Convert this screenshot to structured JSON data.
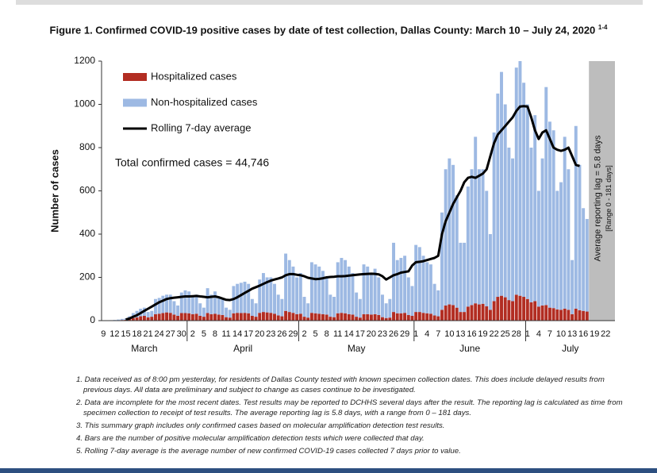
{
  "chart_data": {
    "type": "bar",
    "title": "Figure 1. Confirmed COVID-19 positive cases by date of test collection, Dallas County: March 10 – July 24, 2020",
    "title_note": "1-4",
    "y_label": "Number of cases",
    "annotation": "Total confirmed cases = 44,746",
    "lag_band": {
      "label": "Average reporting lag = 5.8 days",
      "sublabel": "[Range 0 - 181 days]",
      "color": "#bdbdbd"
    },
    "months": [
      {
        "name": "March",
        "days": [
          "9",
          null,
          null,
          "12",
          null,
          null,
          "15",
          null,
          null,
          "18",
          null,
          null,
          "21",
          null,
          null,
          "24",
          null,
          null,
          "27",
          null,
          null,
          "30",
          null
        ]
      },
      {
        "name": "April",
        "days": [
          null,
          "2",
          null,
          null,
          "5",
          null,
          null,
          "8",
          null,
          null,
          "11",
          null,
          null,
          "14",
          null,
          null,
          "17",
          null,
          null,
          "20",
          null,
          null,
          "23",
          null,
          null,
          "26",
          null,
          null,
          "29",
          null
        ]
      },
      {
        "name": "May",
        "days": [
          null,
          "2",
          null,
          null,
          "5",
          null,
          null,
          "8",
          null,
          null,
          "11",
          null,
          null,
          "14",
          null,
          null,
          "17",
          null,
          null,
          "20",
          null,
          null,
          "23",
          null,
          null,
          "26",
          null,
          null,
          "29",
          null,
          null
        ]
      },
      {
        "name": "June",
        "days": [
          "1",
          null,
          null,
          "4",
          null,
          null,
          "7",
          null,
          null,
          "10",
          null,
          null,
          "13",
          null,
          null,
          "16",
          null,
          null,
          "19",
          null,
          null,
          "22",
          null,
          null,
          "25",
          null,
          null,
          "28",
          null,
          null
        ]
      },
      {
        "name": "July",
        "days": [
          "1",
          null,
          null,
          "4",
          null,
          null,
          "7",
          null,
          null,
          "10",
          null,
          null,
          "13",
          null,
          null,
          "16",
          null,
          null,
          "19",
          null,
          null,
          "22",
          null,
          null
        ]
      }
    ],
    "series": [
      {
        "name": "Hospitalized cases",
        "type": "bar",
        "color": "#b22d22",
        "values": [
          0,
          0,
          0,
          1,
          2,
          3,
          4,
          8,
          12,
          15,
          20,
          22,
          15,
          18,
          30,
          32,
          35,
          38,
          36,
          28,
          22,
          35,
          35,
          34,
          30,
          32,
          22,
          18,
          35,
          30,
          32,
          28,
          26,
          16,
          14,
          34,
          36,
          35,
          36,
          34,
          22,
          18,
          36,
          40,
          38,
          36,
          32,
          24,
          20,
          45,
          40,
          36,
          30,
          32,
          18,
          14,
          36,
          34,
          32,
          30,
          28,
          18,
          16,
          34,
          36,
          34,
          30,
          28,
          18,
          14,
          30,
          30,
          28,
          30,
          26,
          16,
          12,
          14,
          40,
          34,
          34,
          36,
          26,
          22,
          40,
          40,
          36,
          34,
          32,
          24,
          20,
          50,
          70,
          75,
          72,
          60,
          40,
          40,
          65,
          72,
          80,
          75,
          78,
          66,
          50,
          90,
          110,
          115,
          108,
          95,
          90,
          120,
          115,
          110,
          100,
          85,
          90,
          65,
          70,
          72,
          60,
          58,
          52,
          50,
          55,
          50,
          30,
          55,
          48,
          45,
          42,
          null,
          null,
          null,
          null,
          null,
          null,
          null
        ]
      },
      {
        "name": "Non-hospitalized cases",
        "type": "bar",
        "color": "#9db9e3",
        "values": [
          0,
          1,
          2,
          2,
          3,
          5,
          6,
          12,
          23,
          30,
          35,
          38,
          25,
          27,
          70,
          73,
          80,
          82,
          84,
          62,
          48,
          95,
          105,
          101,
          80,
          88,
          58,
          42,
          115,
          90,
          103,
          82,
          74,
          44,
          36,
          126,
          134,
          140,
          144,
          136,
          78,
          62,
          154,
          180,
          162,
          164,
          138,
          96,
          80,
          265,
          240,
          214,
          170,
          188,
          92,
          66,
          234,
          226,
          218,
          200,
          172,
          102,
          94,
          236,
          254,
          246,
          220,
          192,
          112,
          86,
          230,
          220,
          192,
          210,
          174,
          104,
          68,
          86,
          320,
          246,
          256,
          264,
          174,
          138,
          310,
          300,
          264,
          236,
          228,
          146,
          120,
          450,
          630,
          675,
          648,
          520,
          320,
          320,
          555,
          628,
          770,
          625,
          622,
          534,
          350,
          780,
          940,
          1035,
          892,
          705,
          660,
          1050,
          1085,
          990,
          900,
          715,
          860,
          535,
          680,
          1008,
          860,
          822,
          548,
          590,
          795,
          650,
          250,
          845,
          672,
          475,
          428,
          null,
          null,
          null,
          null,
          null,
          null,
          null
        ]
      },
      {
        "name": "Rolling 7-day average",
        "type": "line",
        "color": "#000000",
        "values": [
          null,
          null,
          null,
          null,
          null,
          null,
          5,
          10,
          18,
          25,
          35,
          45,
          55,
          65,
          75,
          85,
          92,
          100,
          104,
          106,
          108,
          110,
          112,
          112,
          113,
          114,
          112,
          110,
          108,
          110,
          112,
          108,
          102,
          96,
          95,
          100,
          108,
          118,
          128,
          138,
          148,
          155,
          162,
          170,
          178,
          185,
          190,
          195,
          200,
          210,
          215,
          215,
          212,
          210,
          205,
          198,
          195,
          192,
          193,
          196,
          200,
          202,
          203,
          205,
          205,
          206,
          208,
          210,
          212,
          214,
          215,
          216,
          217,
          216,
          214,
          205,
          190,
          200,
          210,
          215,
          222,
          225,
          228,
          255,
          270,
          272,
          275,
          280,
          285,
          290,
          300,
          400,
          460,
          500,
          540,
          570,
          600,
          640,
          660,
          665,
          660,
          670,
          680,
          700,
          760,
          820,
          860,
          880,
          900,
          920,
          940,
          970,
          990,
          992,
          990,
          940,
          880,
          840,
          870,
          880,
          840,
          800,
          790,
          785,
          790,
          800,
          760,
          720,
          715,
          null,
          null,
          null,
          null,
          null,
          null,
          null,
          null,
          null
        ]
      }
    ],
    "ylim": [
      0,
      1200
    ],
    "yticks": [
      0,
      200,
      400,
      600,
      800,
      1000,
      1200
    ],
    "grid": false,
    "legend": "upper left"
  },
  "footnotes": [
    "1. Data received as of 8:00 pm yesterday, for residents of Dallas County tested with known specimen collection dates.  This does include delayed results from previous days. All data are preliminary and subject to change as cases continue to be investigated.",
    "2. Data are incomplete for the most recent dates. Test results may be reported to DCHHS several days after the result. The reporting lag is calculated as time from specimen collection to receipt of test results. The average reporting lag is 5.8 days, with a range from 0 – 181 days.",
    "3. This summary graph includes only confirmed cases based on molecular amplification detection test results.",
    "4. Bars are the number of positive molecular amplification detection tests which were collected that day.",
    "5. Rolling 7-day average is the average number of new confirmed COVID-19 cases collected 7 days prior to value."
  ]
}
